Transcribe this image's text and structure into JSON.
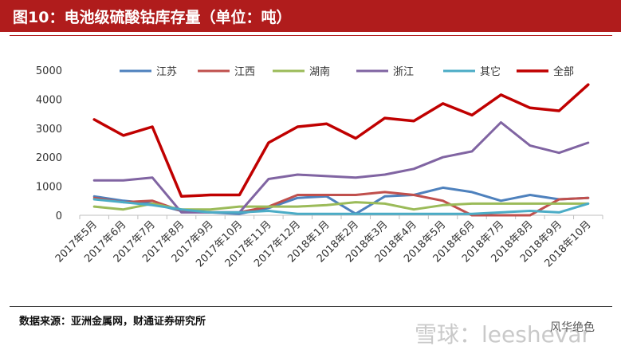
{
  "title": "图10：电池级硫酸钴库存量（单位：吨）",
  "source": "数据来源：亚洲金属网，财通证券研究所",
  "watermark": "雪球：leeshevar",
  "brand": "风华绝色",
  "colors": {
    "title_bar": "#b01c1c",
    "江苏": "#4e81bd",
    "江西": "#c0504d",
    "湖南": "#9bbb59",
    "浙江": "#8064a2",
    "其它": "#4bacc6",
    "全部": "#c00000"
  },
  "chart_data": {
    "type": "line",
    "title": "图10：电池级硫酸钴库存量（单位：吨）",
    "xlabel": "",
    "ylabel": "",
    "ylim": [
      0,
      5000
    ],
    "yticks": [
      0,
      1000,
      2000,
      3000,
      4000,
      5000
    ],
    "grid": false,
    "legend": "top",
    "categories": [
      "2017年5月",
      "2017年6月",
      "2017年7月",
      "2017年8月",
      "2017年9月",
      "2017年10月",
      "2017年11月",
      "2017年12月",
      "2018年1月",
      "2018年2月",
      "2018年3月",
      "2018年4月",
      "2018年5月",
      "2018年6月",
      "2018年7月",
      "2018年8月",
      "2018年9月",
      "2018年10月"
    ],
    "series": [
      {
        "name": "江苏",
        "values": [
          650,
          500,
          400,
          150,
          100,
          50,
          250,
          600,
          650,
          50,
          650,
          700,
          950,
          800,
          500,
          700,
          550,
          600
        ]
      },
      {
        "name": "江西",
        "values": [
          600,
          450,
          500,
          150,
          100,
          100,
          300,
          700,
          700,
          700,
          800,
          700,
          500,
          0,
          0,
          0,
          550,
          600
        ]
      },
      {
        "name": "湖南",
        "values": [
          300,
          200,
          400,
          200,
          200,
          300,
          300,
          300,
          350,
          450,
          400,
          200,
          350,
          400,
          400,
          400,
          400,
          400
        ]
      },
      {
        "name": "浙江",
        "values": [
          1200,
          1200,
          1300,
          100,
          100,
          100,
          1250,
          1400,
          1350,
          1300,
          1400,
          1600,
          2000,
          2200,
          3200,
          2400,
          2150,
          2500
        ]
      },
      {
        "name": "其它",
        "values": [
          550,
          450,
          350,
          200,
          100,
          100,
          150,
          50,
          50,
          50,
          50,
          50,
          50,
          50,
          100,
          150,
          100,
          400
        ]
      },
      {
        "name": "全部",
        "values": [
          3300,
          2750,
          3050,
          650,
          700,
          700,
          2500,
          3050,
          3150,
          2650,
          3350,
          3250,
          3850,
          3450,
          4150,
          3700,
          3600,
          4500
        ]
      }
    ]
  }
}
